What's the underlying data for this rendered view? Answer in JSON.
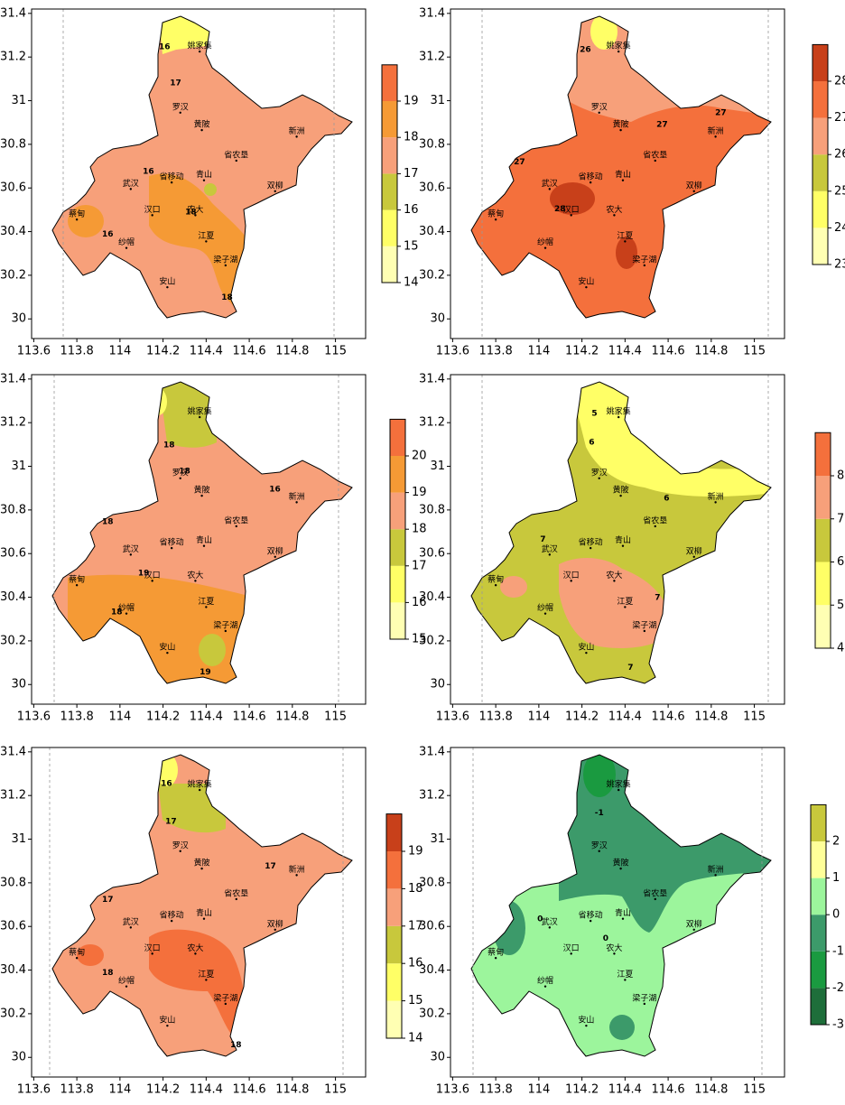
{
  "stations": [
    {
      "name": "姚家集",
      "lon": 114.37,
      "lat": 31.25
    },
    {
      "name": "罗汉",
      "lon": 114.28,
      "lat": 30.97
    },
    {
      "name": "黄陂",
      "lon": 114.38,
      "lat": 30.89
    },
    {
      "name": "新洲",
      "lon": 114.82,
      "lat": 30.86
    },
    {
      "name": "省农垦",
      "lon": 114.54,
      "lat": 30.75
    },
    {
      "name": "省移动",
      "lon": 114.24,
      "lat": 30.65
    },
    {
      "name": "青山",
      "lon": 114.39,
      "lat": 30.66
    },
    {
      "name": "双柳",
      "lon": 114.72,
      "lat": 30.61
    },
    {
      "name": "武汉",
      "lon": 114.05,
      "lat": 30.62
    },
    {
      "name": "蔡甸",
      "lon": 113.8,
      "lat": 30.48
    },
    {
      "name": "汉口",
      "lon": 114.15,
      "lat": 30.5
    },
    {
      "name": "农大",
      "lon": 114.35,
      "lat": 30.5
    },
    {
      "name": "江夏",
      "lon": 114.4,
      "lat": 30.38
    },
    {
      "name": "纱帽",
      "lon": 114.03,
      "lat": 30.35
    },
    {
      "name": "梁子湖",
      "lon": 114.49,
      "lat": 30.27
    },
    {
      "name": "安山",
      "lon": 114.22,
      "lat": 30.17
    }
  ],
  "chart_data": [
    {
      "type": "contour-map",
      "xlim": [
        113.59,
        115.14
      ],
      "ylim": [
        29.91,
        31.42
      ],
      "xticks": [
        113.6,
        113.8,
        114,
        114.2,
        114.4,
        114.6,
        114.8,
        115
      ],
      "yticks": [
        30,
        30.2,
        30.4,
        30.6,
        30.8,
        31,
        31.2,
        31.4
      ],
      "fill": "#f7a07a",
      "colorbar": {
        "ticks": [
          14,
          15,
          16,
          17,
          18,
          19
        ],
        "colors": [
          "#ffffb3",
          "#ffff66",
          "#c8c83c",
          "#f7a07a",
          "#f59a35",
          "#f4703c"
        ]
      },
      "contour_labels": [
        {
          "text": "16",
          "lon": 114.207,
          "lat": 31.246
        },
        {
          "text": "17",
          "lon": 114.258,
          "lat": 31.081
        },
        {
          "text": "16",
          "lon": 114.132,
          "lat": 30.676
        },
        {
          "text": "18",
          "lon": 114.329,
          "lat": 30.49
        },
        {
          "text": "16",
          "lon": 113.943,
          "lat": 30.387
        },
        {
          "text": "18",
          "lon": 114.497,
          "lat": 30.098
        }
      ]
    },
    {
      "type": "contour-map",
      "xlim": [
        113.59,
        115.14
      ],
      "ylim": [
        29.91,
        31.42
      ],
      "xticks": [
        113.6,
        113.8,
        114,
        114.2,
        114.4,
        114.6,
        114.8,
        115
      ],
      "yticks": [
        30,
        30.2,
        30.4,
        30.6,
        30.8,
        31,
        31.2,
        31.4
      ],
      "fill": "#f4703c",
      "colorbar": {
        "ticks": [
          23,
          24,
          25,
          26,
          27,
          28
        ],
        "colors": [
          "#ffffb3",
          "#ffff66",
          "#c8c83c",
          "#f7a07a",
          "#f4703c",
          "#c8401a"
        ]
      },
      "contour_labels": [
        {
          "text": "26",
          "lon": 114.216,
          "lat": 31.234
        },
        {
          "text": "27",
          "lon": 114.844,
          "lat": 30.945
        },
        {
          "text": "27",
          "lon": 114.572,
          "lat": 30.891
        },
        {
          "text": "28",
          "lon": 114.098,
          "lat": 30.503
        },
        {
          "text": "27",
          "lon": 113.91,
          "lat": 30.718
        }
      ]
    },
    {
      "type": "contour-map",
      "xlim": [
        113.59,
        115.14
      ],
      "ylim": [
        29.91,
        31.42
      ],
      "xticks": [
        113.6,
        113.8,
        114,
        114.2,
        114.4,
        114.6,
        114.8,
        115
      ],
      "yticks": [
        30,
        30.2,
        30.4,
        30.6,
        30.8,
        31,
        31.2,
        31.4
      ],
      "fill": "#f7a07a",
      "colorbar": {
        "ticks": [
          15,
          16,
          17,
          18,
          19,
          20
        ],
        "colors": [
          "#ffffb3",
          "#ffff66",
          "#c8c83c",
          "#f7a07a",
          "#f59a35",
          "#f4703c"
        ]
      },
      "contour_labels": [
        {
          "text": "18",
          "lon": 114.228,
          "lat": 31.098
        },
        {
          "text": "18",
          "lon": 114.3,
          "lat": 30.978
        },
        {
          "text": "18",
          "lon": 113.943,
          "lat": 30.746
        },
        {
          "text": "16",
          "lon": 114.719,
          "lat": 30.895
        },
        {
          "text": "19",
          "lon": 114.11,
          "lat": 30.51
        },
        {
          "text": "18",
          "lon": 113.985,
          "lat": 30.333
        },
        {
          "text": "19",
          "lon": 114.396,
          "lat": 30.056
        }
      ]
    },
    {
      "type": "contour-map",
      "xlim": [
        113.59,
        115.14
      ],
      "ylim": [
        29.91,
        31.42
      ],
      "xticks": [
        113.6,
        113.8,
        114,
        114.2,
        114.4,
        114.6,
        114.8,
        115
      ],
      "yticks": [
        30,
        30.2,
        30.4,
        30.6,
        30.8,
        31,
        31.2,
        31.4
      ],
      "fill": "#c8c83c",
      "colorbar": {
        "ticks": [
          4,
          5,
          6,
          7,
          8
        ],
        "colors": [
          "#ffffb3",
          "#ffff66",
          "#c8c83c",
          "#f7a07a",
          "#f4703c"
        ]
      },
      "contour_labels": [
        {
          "text": "5",
          "lon": 114.258,
          "lat": 31.242
        },
        {
          "text": "6",
          "lon": 114.245,
          "lat": 31.11
        },
        {
          "text": "6",
          "lon": 114.593,
          "lat": 30.854
        },
        {
          "text": "7",
          "lon": 114.019,
          "lat": 30.664
        },
        {
          "text": "7",
          "lon": 114.551,
          "lat": 30.399
        },
        {
          "text": "7",
          "lon": 114.425,
          "lat": 30.077
        }
      ]
    },
    {
      "type": "contour-map",
      "xlim": [
        113.59,
        115.14
      ],
      "ylim": [
        29.91,
        31.42
      ],
      "xticks": [
        113.6,
        113.8,
        114,
        114.2,
        114.4,
        114.6,
        114.8,
        115
      ],
      "yticks": [
        30,
        30.2,
        30.4,
        30.6,
        30.8,
        31,
        31.2,
        31.4
      ],
      "fill": "#f7a07a",
      "colorbar": {
        "ticks": [
          14,
          15,
          16,
          17,
          18,
          19
        ],
        "colors": [
          "#ffffb3",
          "#ffff66",
          "#c8c83c",
          "#f7a07a",
          "#f4703c",
          "#c8401a"
        ]
      },
      "contour_labels": [
        {
          "text": "16",
          "lon": 114.216,
          "lat": 31.255
        },
        {
          "text": "17",
          "lon": 114.237,
          "lat": 31.081
        },
        {
          "text": "17",
          "lon": 113.943,
          "lat": 30.722
        },
        {
          "text": "17",
          "lon": 114.698,
          "lat": 30.875
        },
        {
          "text": "18",
          "lon": 113.943,
          "lat": 30.387
        },
        {
          "text": "18",
          "lon": 114.538,
          "lat": 30.056
        }
      ]
    },
    {
      "type": "contour-map",
      "xlim": [
        113.59,
        115.14
      ],
      "ylim": [
        29.91,
        31.42
      ],
      "xticks": [
        113.6,
        113.8,
        114,
        114.2,
        114.4,
        114.6,
        114.8,
        115
      ],
      "yticks": [
        30,
        30.2,
        30.4,
        30.6,
        30.8,
        31,
        31.2,
        31.4
      ],
      "fill": "#9cf59c",
      "colorbar": {
        "ticks": [
          -3,
          -2,
          -1,
          0,
          1,
          2
        ],
        "colors": [
          "#1e6e3a",
          "#1a9a40",
          "#3c9a6a",
          "#9cf59c",
          "#ffff99",
          "#c8c83c"
        ]
      },
      "contour_labels": [
        {
          "text": "-1",
          "lon": 114.28,
          "lat": 31.12
        },
        {
          "text": "0",
          "lon": 114.006,
          "lat": 30.635
        },
        {
          "text": "0",
          "lon": 114.31,
          "lat": 30.544
        }
      ]
    }
  ]
}
